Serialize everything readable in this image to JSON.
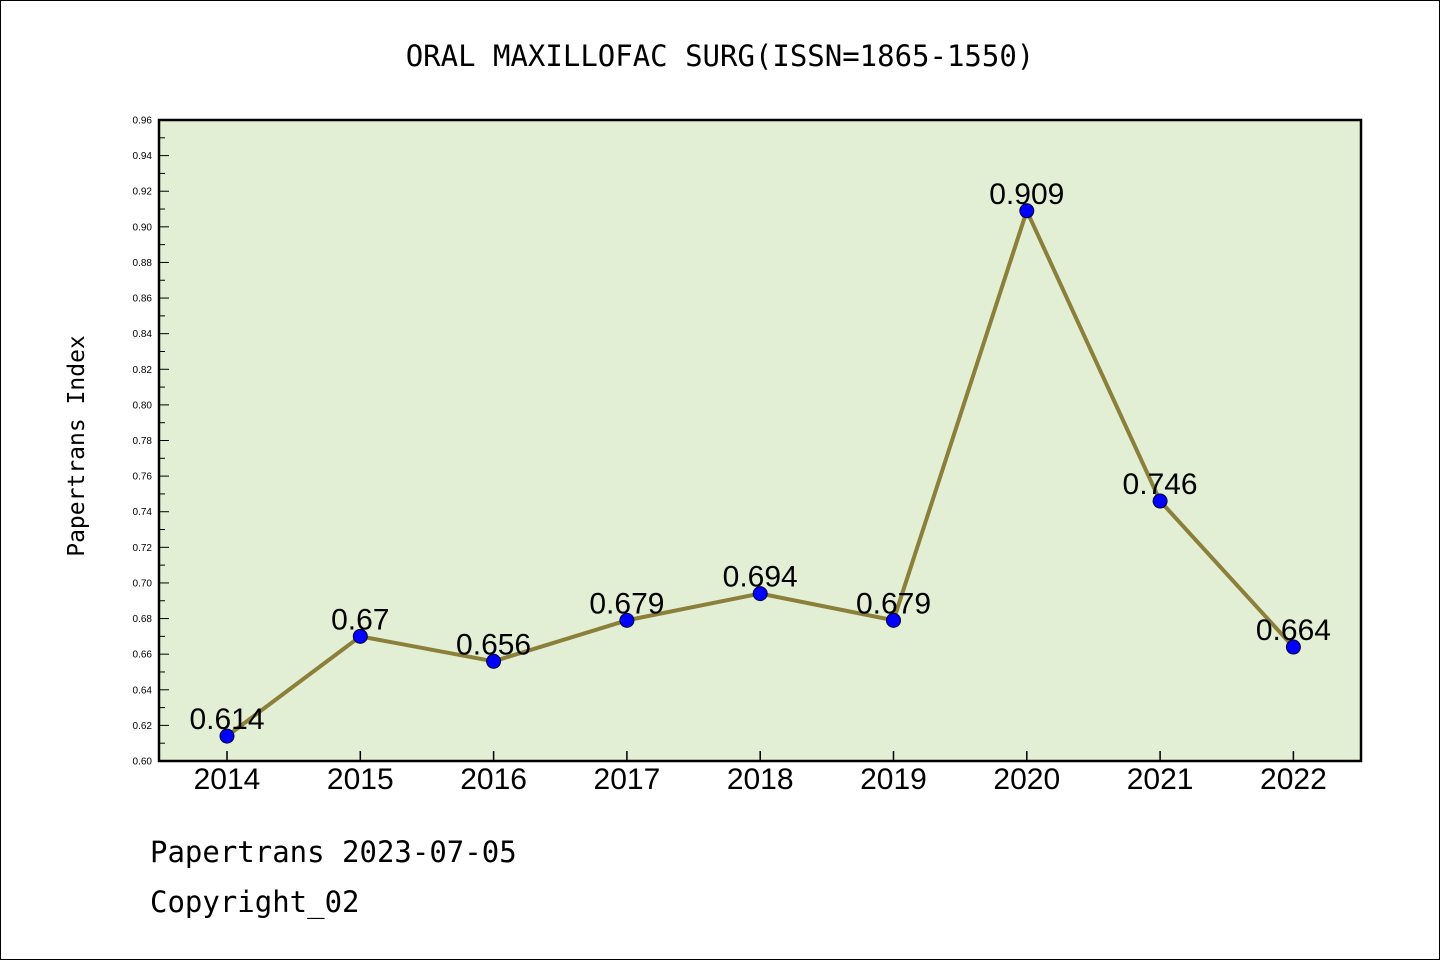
{
  "chart_data": {
    "type": "line",
    "title": "ORAL MAXILLOFAC SURG(ISSN=1865-1550)",
    "ylabel": "Papertrans Index",
    "xlabel": "",
    "categories": [
      "2014",
      "2015",
      "2016",
      "2017",
      "2018",
      "2019",
      "2020",
      "2021",
      "2022"
    ],
    "values": [
      0.614,
      0.67,
      0.656,
      0.679,
      0.694,
      0.679,
      0.909,
      0.746,
      0.664
    ],
    "data_labels": [
      "0.614",
      "0.67",
      "0.656",
      "0.679",
      "0.694",
      "0.679",
      "0.909",
      "0.746",
      "0.664"
    ],
    "ylim": [
      0.6,
      0.96
    ],
    "yticks": [
      "0.60",
      "0.62",
      "0.64",
      "0.66",
      "0.68",
      "0.70",
      "0.72",
      "0.74",
      "0.76",
      "0.78",
      "0.80",
      "0.82",
      "0.84",
      "0.86",
      "0.88",
      "0.90",
      "0.92",
      "0.94",
      "0.96"
    ],
    "grid": false,
    "legend": "none",
    "colors": {
      "plot_background": "#e2efd5",
      "line": "#8b7f3a",
      "marker": "#0000ff"
    }
  },
  "footer": {
    "source_line": "Papertrans 2023-07-05",
    "copyright": "Copyright_02"
  }
}
